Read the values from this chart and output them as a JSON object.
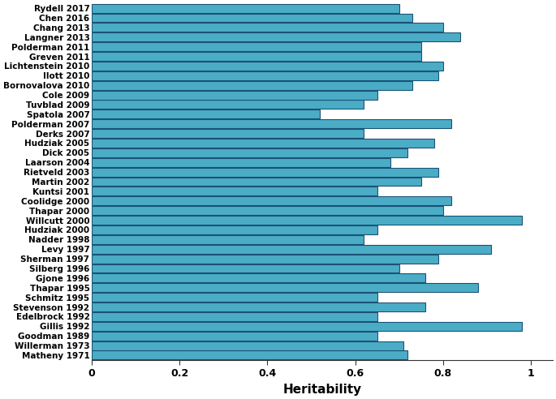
{
  "labels": [
    "Rydell 2017",
    "Chen 2016",
    "Chang 2013",
    "Langner 2013",
    "Polderman 2011",
    "Greven 2011",
    "Lichtenstein 2010",
    "Ilott 2010",
    "Bornovalova 2010",
    "Cole 2009",
    "Tuvblad 2009",
    "Spatola 2007",
    "Polderman 2007",
    "Derks 2007",
    "Hudziak 2005",
    "Dick 2005",
    "Laarson 2004",
    "Rietveld 2003",
    "Martin 2002",
    "Kuntsi 2001",
    "Coolidge 2000",
    "Thapar 2000",
    "Willcutt 2000",
    "Hudziak 2000",
    "Nadder 1998",
    "Levy 1997",
    "Sherman 1997",
    "Silberg 1996",
    "Gjone 1996",
    "Thapar 1995",
    "Schmitz 1995",
    "Stevenson 1992",
    "Edelbrock 1992",
    "Gillis 1992",
    "Goodman 1989",
    "Willerman 1973",
    "Matheny 1971"
  ],
  "values": [
    0.7,
    0.73,
    0.8,
    0.84,
    0.75,
    0.75,
    0.8,
    0.79,
    0.73,
    0.65,
    0.62,
    0.52,
    0.82,
    0.62,
    0.78,
    0.72,
    0.68,
    0.79,
    0.75,
    0.65,
    0.82,
    0.8,
    0.98,
    0.65,
    0.62,
    0.91,
    0.79,
    0.7,
    0.76,
    0.88,
    0.65,
    0.76,
    0.65,
    0.98,
    0.65,
    0.71,
    0.72
  ],
  "bar_color": "#4bacc6",
  "bar_edgecolor": "#1a5276",
  "xlabel": "Heritability",
  "xlim": [
    0,
    1.05
  ],
  "xticks": [
    0,
    0.2,
    0.4,
    0.6,
    0.8,
    1.0
  ],
  "xtick_labels": [
    "0",
    "0.2",
    "0.4",
    "0.6",
    "0.8",
    "1"
  ],
  "background_color": "#ffffff",
  "xlabel_fontsize": 11,
  "tick_fontsize": 9,
  "label_fontsize": 7.5
}
